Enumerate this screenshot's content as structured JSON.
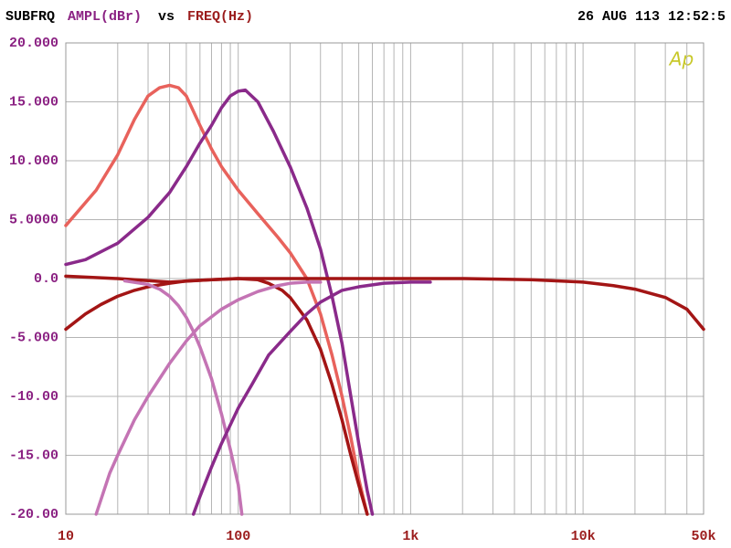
{
  "chart_data": {
    "type": "line",
    "title": "SUBFRQ",
    "y_label": "AMPL(dBr)",
    "title_vs": "vs",
    "x_label": "FREQ(Hz)",
    "timestamp": "26 AUG 113 12:52:5",
    "logo": "Ap",
    "xlim": [
      10,
      50000
    ],
    "xlog": true,
    "ylim": [
      -20,
      20
    ],
    "grid": true,
    "xticks": [
      10,
      100,
      {
        "value": 1000,
        "label": "1k"
      },
      {
        "value": 10000,
        "label": "10k"
      },
      {
        "value": 50000,
        "label": "50k"
      }
    ],
    "xminorticks": [
      20,
      30,
      40,
      50,
      60,
      70,
      80,
      90,
      200,
      300,
      400,
      500,
      600,
      700,
      800,
      900,
      2000,
      3000,
      4000,
      5000,
      6000,
      7000,
      8000,
      9000,
      20000,
      30000,
      40000
    ],
    "yticks": [
      {
        "value": 20,
        "label": "20.000"
      },
      {
        "value": 15,
        "label": "15.000"
      },
      {
        "value": 10,
        "label": "10.000"
      },
      {
        "value": 5,
        "label": "5.0000"
      },
      {
        "value": 0,
        "label": "0.0"
      },
      {
        "value": -5,
        "label": "-5.000"
      },
      {
        "value": -10,
        "label": "-10.00"
      },
      {
        "value": -15,
        "label": "-15.00"
      },
      {
        "value": -20,
        "label": "-20.00"
      }
    ],
    "series": [
      {
        "color": "#e8625c",
        "x": [
          10,
          15,
          20,
          25,
          30,
          35,
          40,
          45,
          50,
          60,
          70,
          80,
          100,
          130,
          170,
          200,
          250,
          300,
          350,
          400,
          450,
          500,
          560
        ],
        "values": [
          4.5,
          7.5,
          10.5,
          13.5,
          15.5,
          16.2,
          16.4,
          16.2,
          15.5,
          13,
          11,
          9.5,
          7.5,
          5.5,
          3.5,
          2.2,
          0,
          -3,
          -6.5,
          -10,
          -13.5,
          -17,
          -20
        ]
      },
      {
        "color": "#8a2a8a",
        "x": [
          10,
          13,
          20,
          30,
          40,
          50,
          60,
          70,
          80,
          90,
          100,
          110,
          130,
          160,
          200,
          250,
          300,
          350,
          400,
          450,
          500,
          560,
          600
        ],
        "values": [
          1.2,
          1.6,
          3,
          5.2,
          7.3,
          9.5,
          11.5,
          13,
          14.5,
          15.5,
          15.9,
          16,
          15,
          12.5,
          9.5,
          6,
          2.5,
          -1.5,
          -5.5,
          -10,
          -14,
          -18,
          -20
        ]
      },
      {
        "color": "#a31515",
        "x": [
          10,
          13,
          16,
          20,
          25,
          30,
          40,
          50,
          70,
          100,
          200,
          500,
          1000,
          2000,
          5000,
          10000,
          15000,
          20000,
          30000,
          40000,
          50000
        ],
        "values": [
          -4.3,
          -3,
          -2.2,
          -1.5,
          -1,
          -0.7,
          -0.4,
          -0.2,
          -0.1,
          0,
          0,
          0,
          0,
          0,
          -0.1,
          -0.3,
          -0.6,
          -0.9,
          -1.6,
          -2.6,
          -4.3
        ]
      },
      {
        "color": "#a31515",
        "x": [
          10,
          20,
          40,
          70,
          100,
          130,
          150,
          180,
          200,
          250,
          300,
          350,
          400,
          450,
          500,
          560
        ],
        "values": [
          0.2,
          0,
          -0.3,
          -0.1,
          0,
          -0.1,
          -0.4,
          -1,
          -1.6,
          -3.5,
          -6,
          -9,
          -12,
          -15,
          -17.5,
          -20
        ]
      },
      {
        "color": "#c474b4",
        "x": [
          22,
          30,
          35,
          40,
          45,
          50,
          55,
          60,
          70,
          80,
          90,
          100,
          105
        ],
        "values": [
          -0.2,
          -0.5,
          -0.9,
          -1.5,
          -2.3,
          -3.3,
          -4.5,
          -5.8,
          -8.5,
          -11.5,
          -14.5,
          -17.5,
          -20
        ]
      },
      {
        "color": "#c474b4",
        "x": [
          15,
          18,
          20,
          25,
          30,
          40,
          50,
          60,
          80,
          100,
          130,
          170,
          200,
          250,
          300
        ],
        "values": [
          -20,
          -16.5,
          -15,
          -12,
          -10,
          -7.2,
          -5.3,
          -4,
          -2.6,
          -1.8,
          -1.1,
          -0.6,
          -0.4,
          -0.3,
          -0.3
        ]
      },
      {
        "color": "#8a2a8a",
        "x": [
          55,
          60,
          70,
          80,
          100,
          120,
          150,
          200,
          250,
          300,
          400,
          500,
          700,
          1000,
          1300
        ],
        "values": [
          -20,
          -18.5,
          -16,
          -14,
          -11,
          -9,
          -6.5,
          -4.5,
          -3,
          -2,
          -1,
          -0.7,
          -0.4,
          -0.3,
          -0.3
        ]
      }
    ]
  }
}
